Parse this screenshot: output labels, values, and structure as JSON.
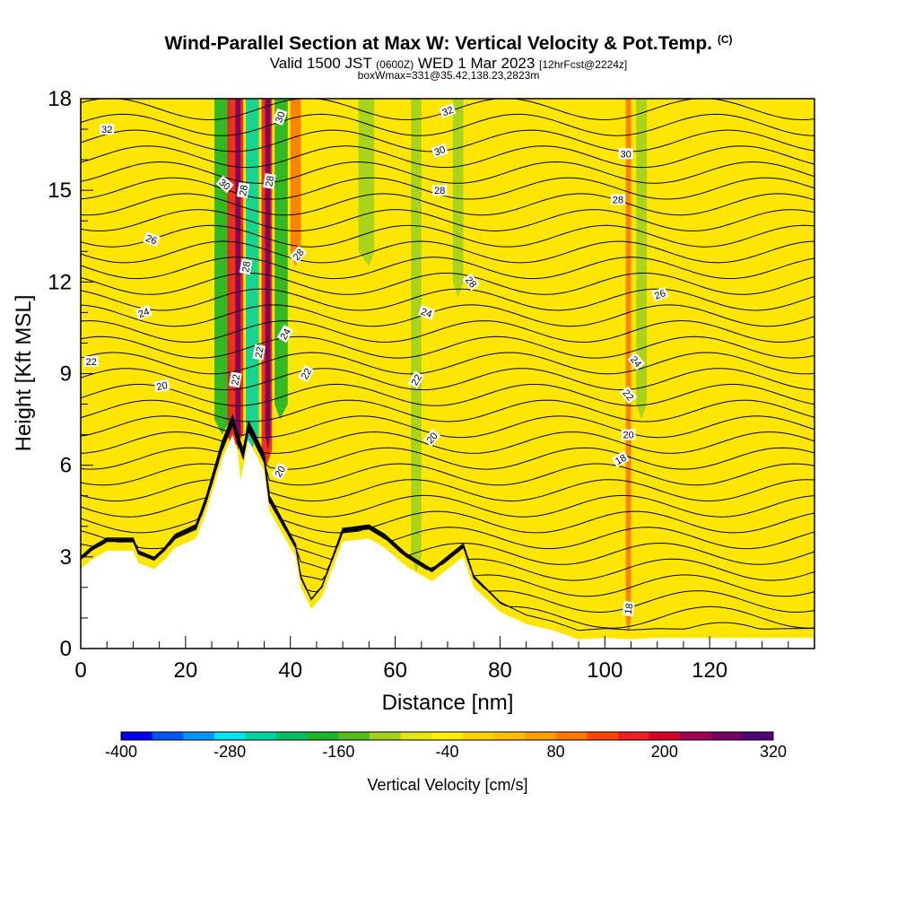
{
  "title": {
    "main": "Wind-Parallel Section at Max W: Vertical Velocity & Pot.Temp.",
    "main_suffix": "(C)",
    "valid_pre": "Valid 1500 JST ",
    "valid_utc": "(0600Z)",
    "valid_mid": " WED 1 Mar 2023 ",
    "valid_fcst": "[12hrFcst@2224z]",
    "box": "boxWmax=331@35.42,138.23,2823m"
  },
  "chart_data": {
    "type": "heatmap",
    "xlabel": "Distance [nm]",
    "ylabel": "Height [Kft MSL]",
    "xlim": [
      0,
      140
    ],
    "ylim": [
      0,
      18
    ],
    "xticks": [
      0,
      20,
      40,
      60,
      80,
      100,
      120
    ],
    "yticks": [
      0,
      3,
      6,
      9,
      12,
      15,
      18
    ],
    "colorbar": {
      "label": "Vertical Velocity [cm/s]",
      "range": [
        -400,
        320
      ],
      "step": 40,
      "tick_values": [
        -400,
        -280,
        -160,
        -40,
        80,
        200,
        320
      ],
      "colors": [
        "#0000f0",
        "#0055f5",
        "#0096ff",
        "#00e6f0",
        "#00d2a0",
        "#00c062",
        "#1eb428",
        "#55be1e",
        "#a0d21e",
        "#e6e614",
        "#fff000",
        "#ffd200",
        "#ffbe00",
        "#ffa000",
        "#ff7800",
        "#ff4600",
        "#f01e1e",
        "#d20028",
        "#a00050",
        "#780064",
        "#500078"
      ]
    },
    "background_color": "#ffe600",
    "terrain_profile": {
      "x": [
        0,
        2,
        5,
        10,
        11,
        14,
        16,
        18,
        22,
        24,
        27,
        29,
        30,
        30.5,
        32,
        33,
        35,
        36,
        39,
        41,
        42,
        44,
        46,
        50,
        55,
        58,
        60,
        62,
        65,
        67,
        70,
        73,
        74,
        75,
        80,
        85,
        90,
        95,
        100,
        105,
        110,
        120,
        140
      ],
      "y": [
        2.6,
        2.9,
        3.2,
        3.2,
        2.8,
        2.6,
        2.9,
        3.3,
        3.6,
        4.5,
        6.2,
        7.0,
        6.4,
        5.5,
        6.8,
        6.5,
        5.8,
        4.5,
        3.6,
        3.0,
        2.0,
        1.3,
        1.7,
        3.5,
        3.6,
        3.3,
        3.0,
        2.7,
        2.4,
        2.2,
        2.6,
        3.0,
        2.5,
        2.0,
        1.2,
        0.8,
        0.6,
        0.3,
        0.35,
        0.3,
        0.35,
        0.35,
        0.35
      ]
    },
    "updraft_bands": [
      {
        "x": [
          28,
          29,
          31
        ],
        "color": "#f01e1e",
        "from": 7.0
      },
      {
        "x": [
          29.5,
          30,
          30.5
        ],
        "color": "#780064",
        "from": 7.0
      },
      {
        "x": [
          34.5,
          35.5,
          36.5
        ],
        "color": "#f01e1e",
        "from": 6.5
      },
      {
        "x": [
          35.2,
          35.7,
          36.2
        ],
        "color": "#780064",
        "from": 7.0
      },
      {
        "x": [
          40,
          41,
          42
        ],
        "color": "#ff7800",
        "from": 13.0
      },
      {
        "x": [
          104,
          104.5,
          105
        ],
        "color": "#ff7800",
        "from": 1.0
      }
    ],
    "downdraft_bands": [
      {
        "x": [
          25.5,
          27,
          28.5
        ],
        "color": "#1eb428",
        "from": 7.5
      },
      {
        "x": [
          31.5,
          32.5,
          34
        ],
        "color": "#00d2a0",
        "from": 7.0
      },
      {
        "x": [
          37,
          38,
          39.5
        ],
        "color": "#1eb428",
        "from": 8.0
      },
      {
        "x": [
          53,
          55,
          56
        ],
        "color": "#a0d21e",
        "from": 13.0
      },
      {
        "x": [
          63,
          64,
          65
        ],
        "color": "#a0d21e",
        "from": 3.0
      },
      {
        "x": [
          71,
          72,
          73
        ],
        "color": "#a0d21e",
        "from": 12.0
      },
      {
        "x": [
          106,
          107,
          108
        ],
        "color": "#a0d21e",
        "from": 8.0
      }
    ],
    "isentrope_labels": [
      {
        "text": "32",
        "x": 5,
        "y": 17.0,
        "angle": 0
      },
      {
        "text": "32",
        "x": 70,
        "y": 17.6,
        "angle": -20
      },
      {
        "text": "30",
        "x": 38,
        "y": 17.4,
        "angle": -70
      },
      {
        "text": "30",
        "x": 27.5,
        "y": 15.2,
        "angle": 40
      },
      {
        "text": "30",
        "x": 68.5,
        "y": 16.3,
        "angle": -20
      },
      {
        "text": "30",
        "x": 104,
        "y": 16.2,
        "angle": 0
      },
      {
        "text": "28",
        "x": 31,
        "y": 15.0,
        "angle": -80
      },
      {
        "text": "28",
        "x": 36,
        "y": 15.3,
        "angle": -80
      },
      {
        "text": "28",
        "x": 68.5,
        "y": 15.0,
        "angle": 0
      },
      {
        "text": "28",
        "x": 102.5,
        "y": 14.7,
        "angle": 0
      },
      {
        "text": "28",
        "x": 31.5,
        "y": 12.5,
        "angle": -80
      },
      {
        "text": "28",
        "x": 41.5,
        "y": 12.9,
        "angle": -50
      },
      {
        "text": "28",
        "x": 74.5,
        "y": 12.0,
        "angle": 50
      },
      {
        "text": "26",
        "x": 13.5,
        "y": 13.4,
        "angle": 20
      },
      {
        "text": "26",
        "x": 110.5,
        "y": 11.6,
        "angle": -20
      },
      {
        "text": "24",
        "x": 12,
        "y": 11.0,
        "angle": -20
      },
      {
        "text": "24",
        "x": 66,
        "y": 11.0,
        "angle": 20
      },
      {
        "text": "24",
        "x": 39,
        "y": 10.3,
        "angle": -60
      },
      {
        "text": "24",
        "x": 106,
        "y": 9.4,
        "angle": 50
      },
      {
        "text": "22",
        "x": 2,
        "y": 9.4,
        "angle": 0
      },
      {
        "text": "22",
        "x": 34,
        "y": 9.7,
        "angle": -80
      },
      {
        "text": "22",
        "x": 29.5,
        "y": 8.8,
        "angle": -80
      },
      {
        "text": "22",
        "x": 43,
        "y": 9.0,
        "angle": -60
      },
      {
        "text": "22",
        "x": 64,
        "y": 8.8,
        "angle": -60
      },
      {
        "text": "22",
        "x": 104.5,
        "y": 8.3,
        "angle": 50
      },
      {
        "text": "20",
        "x": 15.5,
        "y": 8.6,
        "angle": -10
      },
      {
        "text": "20",
        "x": 67,
        "y": 6.9,
        "angle": -50
      },
      {
        "text": "20",
        "x": 104.5,
        "y": 7.0,
        "angle": 0
      },
      {
        "text": "20",
        "x": 38,
        "y": 5.8,
        "angle": -60
      },
      {
        "text": "18",
        "x": 103,
        "y": 6.2,
        "angle": -30
      },
      {
        "text": "18",
        "x": 104.5,
        "y": 1.3,
        "angle": -80
      }
    ]
  }
}
